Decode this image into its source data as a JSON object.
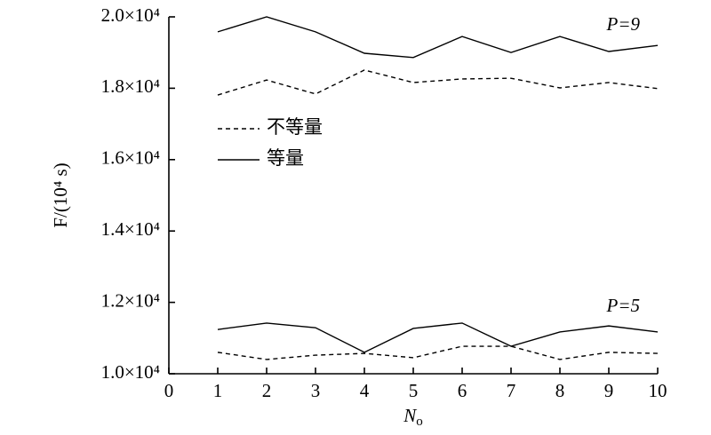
{
  "chart_data": {
    "type": "line",
    "ylabel": "F/(10⁴ s)",
    "xlabel": {
      "main": "N",
      "sub": "o"
    },
    "xlim": [
      0,
      10
    ],
    "xticks": [
      0,
      1,
      2,
      3,
      4,
      5,
      6,
      7,
      8,
      9,
      10
    ],
    "ylim": [
      10000,
      20000
    ],
    "yticks": [
      {
        "value": 10000,
        "label": "1.0×10⁴"
      },
      {
        "value": 12000,
        "label": "1.2×10⁴"
      },
      {
        "value": 14000,
        "label": "1.4×10⁴"
      },
      {
        "value": 16000,
        "label": "1.6×10⁴"
      },
      {
        "value": 18000,
        "label": "1.8×10⁴"
      },
      {
        "value": 20000,
        "label": "2.0×10⁴"
      }
    ],
    "x": [
      1,
      2,
      3,
      4,
      5,
      6,
      7,
      8,
      9,
      10
    ],
    "series": [
      {
        "name": "不等量",
        "color": "#000000",
        "dashed": true,
        "values": [
          17810,
          18230,
          17840,
          18510,
          18160,
          18260,
          18280,
          18010,
          18160,
          17990
        ]
      },
      {
        "name": "等量",
        "color": "#000000",
        "dashed": false,
        "values": [
          19580,
          20000,
          19580,
          18980,
          18860,
          19450,
          19000,
          19450,
          19030,
          19200
        ]
      },
      {
        "color": "#000000",
        "dashed": true,
        "values": [
          10600,
          10400,
          10520,
          10570,
          10450,
          10770,
          10770,
          10400,
          10600,
          10570
        ]
      },
      {
        "color": "#000000",
        "dashed": false,
        "values": [
          11240,
          11420,
          11290,
          10600,
          11270,
          11420,
          10770,
          11170,
          11340,
          11170
        ]
      }
    ],
    "annotations": [
      "P=9",
      "P=5"
    ],
    "grid": false
  }
}
